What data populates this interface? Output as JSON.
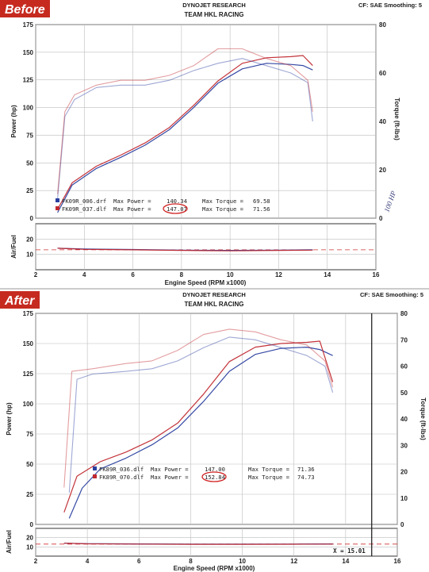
{
  "charts": [
    {
      "badge": "Before",
      "org": "DYNOJET RESEARCH",
      "team": "TEAM HKL RACING",
      "settings": "CF: SAE  Smoothing: 5",
      "legend": [
        {
          "file": "FK09R_006.drf",
          "max_power_label": "Max Power =",
          "max_power": "140.34",
          "max_torque_label": "Max Torque =",
          "max_torque": "69.58",
          "color": "#2a3f9f"
        },
        {
          "file": "FK09R_037.dlf",
          "max_power_label": "Max Power =",
          "max_power": "147.07",
          "max_torque_label": "Max Torque =",
          "max_torque": "71.56",
          "color": "#c0282f"
        }
      ],
      "annotation": "100 HP"
    },
    {
      "badge": "After",
      "org": "DYNOJET RESEARCH",
      "team": "TEAM HKL RACING",
      "settings": "CF: SAE  Smoothing: 5",
      "legend": [
        {
          "file": "FK89R_036.dlf",
          "max_power_label": "Max Power =",
          "max_power": "147.00",
          "max_torque_label": "Max Torque =",
          "max_torque": "71.36",
          "color": "#2a3f9f"
        },
        {
          "file": "FK89R_070.dlf",
          "max_power_label": "Max Power =",
          "max_power": "152.84",
          "max_torque_label": "Max Torque =",
          "max_torque": "74.73",
          "color": "#c0282f"
        }
      ],
      "cursor_label": "X = 15.01"
    }
  ],
  "chart_data": [
    {
      "type": "line",
      "xlabel": "Engine Speed (RPM x1000)",
      "ylabel_left": "Power (hp)",
      "ylabel_right": "Torque (ft-lbs)",
      "af_label": "Air/Fuel",
      "xlim": [
        2,
        16
      ],
      "xticks": [
        "2",
        "4",
        "6",
        "8",
        "10",
        "12",
        "14",
        "16"
      ],
      "ylim_power": [
        0,
        175
      ],
      "yticks_power": [
        "0",
        "25",
        "50",
        "75",
        "100",
        "125",
        "150",
        "175"
      ],
      "ylim_torque": [
        0,
        80
      ],
      "yticks_torque": [
        "0",
        "20",
        "40",
        "60",
        "80"
      ],
      "af_ylim": [
        0,
        30
      ],
      "af_yticks": [
        "10",
        "20"
      ],
      "af_target": 13,
      "series": [
        {
          "kind": "power",
          "color": "#2a3f9f",
          "x": [
            2.9,
            3.5,
            4.5,
            5.5,
            6.5,
            7.5,
            8.5,
            9.5,
            10.5,
            11.5,
            12.5,
            13.0,
            13.4
          ],
          "y": [
            5,
            30,
            45,
            55,
            66,
            80,
            100,
            122,
            135,
            140,
            139,
            138,
            134
          ]
        },
        {
          "kind": "power",
          "color": "#c0282f",
          "x": [
            2.9,
            3.5,
            4.5,
            5.5,
            6.5,
            7.5,
            8.5,
            9.5,
            10.5,
            11.5,
            12.5,
            13.0,
            13.4
          ],
          "y": [
            8,
            32,
            47,
            57,
            68,
            82,
            102,
            124,
            140,
            145,
            146,
            147,
            138
          ]
        },
        {
          "kind": "torque",
          "color": "#2a3f9f",
          "x": [
            2.9,
            3.2,
            3.6,
            4.5,
            5.5,
            6.5,
            7.5,
            8.5,
            9.5,
            10.5,
            11.5,
            12.5,
            13.2,
            13.4
          ],
          "y": [
            8,
            42,
            49,
            54,
            55,
            55,
            57,
            61,
            64,
            66,
            63,
            60,
            56,
            40
          ]
        },
        {
          "kind": "torque",
          "color": "#c0282f",
          "x": [
            2.9,
            3.2,
            3.6,
            4.5,
            5.5,
            6.5,
            7.5,
            8.5,
            9.5,
            10.5,
            11.5,
            12.5,
            13.2,
            13.4
          ],
          "y": [
            10,
            44,
            51,
            55,
            57,
            57,
            59,
            63,
            70,
            70,
            66,
            63,
            57,
            44
          ]
        },
        {
          "kind": "af",
          "color": "#2a3f9f",
          "x": [
            2.9,
            4,
            6,
            8,
            10,
            12,
            13.4
          ],
          "y": [
            14,
            13.5,
            13.2,
            12.8,
            12.6,
            12.8,
            13
          ]
        },
        {
          "kind": "af",
          "color": "#c0282f",
          "x": [
            2.9,
            4,
            6,
            8,
            10,
            12,
            13.4
          ],
          "y": [
            14,
            13.3,
            13.0,
            12.6,
            12.3,
            12.6,
            12.8
          ]
        }
      ]
    },
    {
      "type": "line",
      "xlabel": "Engine Speed (RPM x1000)",
      "ylabel_left": "Power (hp)",
      "ylabel_right": "Torque (ft-lbs)",
      "af_label": "Air/Fuel",
      "xlim": [
        2,
        16
      ],
      "xticks": [
        "2",
        "4",
        "6",
        "8",
        "10",
        "12",
        "14",
        "16"
      ],
      "ylim_power": [
        0,
        175
      ],
      "yticks_power": [
        "0",
        "25",
        "50",
        "75",
        "100",
        "125",
        "150",
        "175"
      ],
      "ylim_torque": [
        0,
        80
      ],
      "yticks_torque": [
        "0",
        "10",
        "20",
        "30",
        "40",
        "50",
        "60",
        "70",
        "80"
      ],
      "af_ylim": [
        0,
        30
      ],
      "af_yticks": [
        "10",
        "20"
      ],
      "af_target": 13,
      "cursor_x": 15.01,
      "series": [
        {
          "kind": "power",
          "color": "#2a3f9f",
          "x": [
            3.3,
            3.8,
            4.5,
            5.5,
            6.5,
            7.5,
            8.5,
            9.5,
            10.5,
            11.5,
            12.5,
            13.0,
            13.5
          ],
          "y": [
            5,
            30,
            46,
            55,
            66,
            80,
            102,
            127,
            141,
            146,
            147,
            145,
            140
          ]
        },
        {
          "kind": "power",
          "color": "#c0282f",
          "x": [
            3.1,
            3.6,
            4.5,
            5.5,
            6.5,
            7.5,
            8.5,
            9.5,
            10.5,
            11.5,
            12.5,
            13.0,
            13.5
          ],
          "y": [
            10,
            40,
            52,
            60,
            70,
            84,
            108,
            135,
            147,
            150,
            151,
            152,
            118
          ]
        },
        {
          "kind": "torque",
          "color": "#2a3f9f",
          "x": [
            3.3,
            3.6,
            4.2,
            5.5,
            6.5,
            7.5,
            8.5,
            9.5,
            10.5,
            11.5,
            12.5,
            13.2,
            13.5
          ],
          "y": [
            12,
            55,
            57,
            58,
            59,
            62,
            67,
            71,
            70,
            67,
            64,
            60,
            50
          ]
        },
        {
          "kind": "torque",
          "color": "#c0282f",
          "x": [
            3.1,
            3.4,
            4.2,
            5.5,
            6.5,
            7.5,
            8.5,
            9.5,
            10.5,
            11.5,
            12.5,
            13.2,
            13.5
          ],
          "y": [
            14,
            58,
            59,
            61,
            62,
            66,
            72,
            74,
            73,
            70,
            68,
            62,
            52
          ]
        },
        {
          "kind": "af",
          "color": "#2a3f9f",
          "x": [
            3.1,
            4,
            6,
            8,
            10,
            12,
            13.5
          ],
          "y": [
            14,
            13.5,
            13.2,
            13.0,
            13.0,
            13.0,
            13.2
          ]
        },
        {
          "kind": "af",
          "color": "#c0282f",
          "x": [
            3.1,
            4,
            6,
            8,
            10,
            12,
            13.5
          ],
          "y": [
            14,
            13.3,
            13.0,
            12.8,
            12.8,
            12.9,
            13.0
          ]
        }
      ]
    }
  ]
}
